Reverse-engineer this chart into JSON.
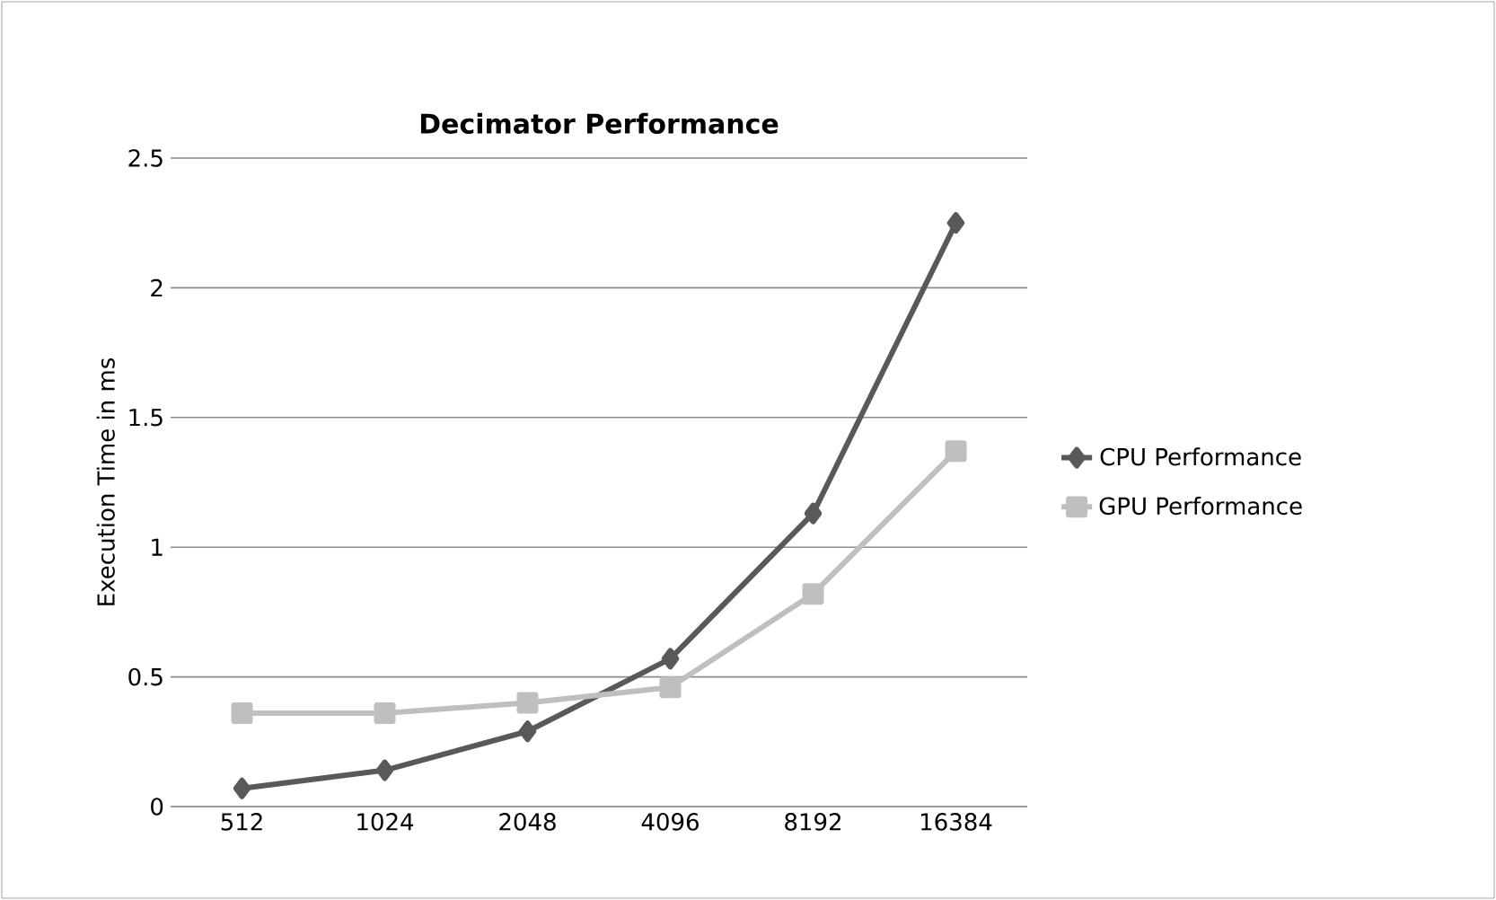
{
  "chart_data": {
    "type": "line",
    "title": "Decimator Performance",
    "ylabel": "Execution Time in ms",
    "categories": [
      "512",
      "1024",
      "2048",
      "4096",
      "8192",
      "16384"
    ],
    "series": [
      {
        "name": "CPU Performance",
        "color": "#595959",
        "marker": "diamond",
        "values": [
          0.07,
          0.14,
          0.29,
          0.57,
          1.13,
          2.25
        ]
      },
      {
        "name": "GPU Performance",
        "color": "#bfbfbf",
        "marker": "square",
        "values": [
          0.36,
          0.36,
          0.4,
          0.46,
          0.82,
          1.37
        ]
      }
    ],
    "ylim": [
      0,
      2.5
    ],
    "yticks": [
      0,
      0.5,
      1,
      1.5,
      2,
      2.5
    ],
    "grid": "y",
    "legend": "right",
    "line_style": "solid"
  }
}
